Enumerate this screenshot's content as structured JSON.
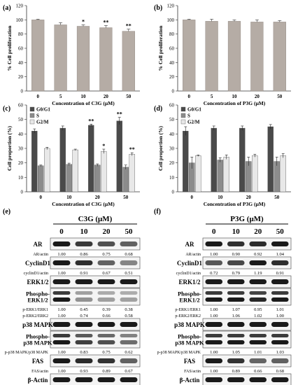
{
  "panels": {
    "a": {
      "label": "(a)"
    },
    "b": {
      "label": "(b)"
    },
    "c": {
      "label": "(c)"
    },
    "d": {
      "label": "(d)"
    },
    "e": {
      "label": "(e)"
    },
    "f": {
      "label": "(f)"
    }
  },
  "colors": {
    "bar_single": "#b5aca5",
    "g0g1": "#4a4a4a",
    "s": "#8c8c8c",
    "g2m": "#e8e8e8",
    "band": "#1a1a1a",
    "blot_bg": "#f4f4f4"
  },
  "chart_data": [
    {
      "id": "a",
      "type": "bar",
      "categories": [
        "0",
        "5",
        "10",
        "20",
        "50"
      ],
      "values": [
        100,
        93,
        91,
        89,
        84
      ],
      "errors": [
        1,
        3,
        2,
        3,
        3
      ],
      "significance": [
        "",
        "",
        "*",
        "**",
        "**"
      ],
      "xlabel": "Concentration of C3G (μM)",
      "ylabel": "% Cell proliferation",
      "ylim": [
        0,
        120
      ],
      "yticks": [
        0,
        20,
        40,
        60,
        80,
        100,
        120
      ],
      "grid": false
    },
    {
      "id": "b",
      "type": "bar",
      "categories": [
        "0",
        "5",
        "10",
        "20",
        "50"
      ],
      "values": [
        100,
        98,
        98,
        97,
        97
      ],
      "errors": [
        1,
        3,
        2,
        3,
        2
      ],
      "significance": [
        "",
        "",
        "",
        "",
        ""
      ],
      "xlabel": "Concentration of P3G (μM)",
      "ylabel": "% Cell proliferation",
      "ylim": [
        0,
        120
      ],
      "yticks": [
        0,
        20,
        40,
        60,
        80,
        100,
        120
      ],
      "grid": false
    },
    {
      "id": "c",
      "type": "bar",
      "categories": [
        "0",
        "10",
        "20",
        "50"
      ],
      "series": [
        {
          "name": "G0/G1",
          "values": [
            42,
            44,
            46,
            49
          ],
          "errors": [
            1.5,
            1.5,
            0.8,
            2.5
          ],
          "significance": [
            "",
            "",
            "**",
            "**"
          ]
        },
        {
          "name": "S",
          "values": [
            18,
            19,
            18.5,
            17
          ],
          "errors": [
            0.5,
            0.8,
            0.8,
            1.5
          ],
          "significance": [
            "",
            "",
            "",
            ""
          ]
        },
        {
          "name": "G2/M",
          "values": [
            30,
            29,
            28,
            26
          ],
          "errors": [
            0.8,
            0.5,
            1.5,
            1.0
          ],
          "significance": [
            "",
            "",
            "*",
            "**"
          ]
        }
      ],
      "xlabel": "Concentration of C3G (μM)",
      "ylabel": "Cell proportion (%)",
      "ylim": [
        0,
        60
      ],
      "yticks": [
        0,
        10,
        20,
        30,
        40,
        50,
        60
      ],
      "legend": "top-left",
      "grid": false
    },
    {
      "id": "d",
      "type": "bar",
      "categories": [
        "0",
        "10",
        "20",
        "50"
      ],
      "series": [
        {
          "name": "G0/G1",
          "values": [
            42,
            44,
            44,
            45
          ],
          "errors": [
            3,
            1.5,
            1.5,
            1.5
          ],
          "significance": [
            "",
            "",
            "",
            ""
          ]
        },
        {
          "name": "S",
          "values": [
            20,
            22,
            21,
            21
          ],
          "errors": [
            4,
            1.5,
            3,
            3
          ],
          "significance": [
            "",
            "",
            "",
            ""
          ]
        },
        {
          "name": "G2/M",
          "values": [
            25,
            24,
            25,
            25
          ],
          "errors": [
            0.5,
            1.5,
            1.0,
            1.5
          ],
          "significance": [
            "",
            "",
            "",
            ""
          ]
        }
      ],
      "xlabel": "Concentration of P3G (μM)",
      "ylabel": "Cell proportion (%)",
      "ylim": [
        0,
        60
      ],
      "yticks": [
        0,
        10,
        20,
        30,
        40,
        50,
        60
      ],
      "legend": "top-left",
      "grid": false
    }
  ],
  "blots": {
    "e": {
      "title": "C3G (μM)",
      "lanes": [
        "0",
        "10",
        "20",
        "50"
      ],
      "rows": [
        {
          "type": "blot",
          "label": "AR",
          "intensity": [
            1.0,
            0.86,
            0.75,
            0.68
          ]
        },
        {
          "type": "values",
          "label": "AR/actin",
          "values": [
            "1.00",
            "0.86",
            "0.75",
            "0.68"
          ]
        },
        {
          "type": "blot",
          "label": "CyclinD1",
          "intensity": [
            1.0,
            0.91,
            0.67,
            0.51
          ]
        },
        {
          "type": "values",
          "label": "cyclinD1/actin",
          "values": [
            "1.00",
            "0.91",
            "0.67",
            "0.51"
          ]
        },
        {
          "type": "blot",
          "label": "ERK1/2",
          "intensity": [
            1.0,
            1.0,
            1.0,
            1.0
          ]
        },
        {
          "type": "blot2",
          "label": "Phospho-\nERK1/2",
          "intensity": [
            1.0,
            0.45,
            0.39,
            0.38
          ]
        },
        {
          "type": "values",
          "label": "p-ERK1/ERK1",
          "values": [
            "1.00",
            "0.45",
            "0.39",
            "0.38"
          ]
        },
        {
          "type": "values",
          "label": "p-ERK2/ERK2",
          "values": [
            "1.00",
            "0.74",
            "0.66",
            "0.58"
          ]
        },
        {
          "type": "blot",
          "label": "p38 MAPK",
          "intensity": [
            1.0,
            1.0,
            1.0,
            1.0
          ]
        },
        {
          "type": "blot2",
          "label": "Phospho-\np38 MAPK",
          "intensity": [
            1.0,
            0.83,
            0.75,
            0.62
          ]
        },
        {
          "type": "values",
          "label": "p-p38 MAPK/p38 MAPK",
          "values": [
            "1.00",
            "0.83",
            "0.75",
            "0.62"
          ]
        },
        {
          "type": "blot",
          "label": "FAS",
          "intensity": [
            1.0,
            0.93,
            0.89,
            0.67
          ]
        },
        {
          "type": "values",
          "label": "FAS/actin",
          "values": [
            "1.00",
            "0.93",
            "0.89",
            "0.67"
          ]
        },
        {
          "type": "blot",
          "label": "β-Actin",
          "intensity": [
            1.0,
            1.0,
            1.0,
            1.0
          ]
        }
      ]
    },
    "f": {
      "title": "P3G (μM)",
      "lanes": [
        "0",
        "10",
        "20",
        "50"
      ],
      "rows": [
        {
          "type": "blot",
          "label": "AR",
          "intensity": [
            1.0,
            0.9,
            0.92,
            1.0
          ]
        },
        {
          "type": "values",
          "label": "AR/actin",
          "values": [
            "1.00",
            "0.90",
            "0.92",
            "1.04"
          ]
        },
        {
          "type": "blot",
          "label": "CyclinD1",
          "intensity": [
            0.72,
            0.79,
            1.0,
            0.91
          ]
        },
        {
          "type": "values",
          "label": "cyclinD1/actin",
          "values": [
            "0.72",
            "0.79",
            "1.19",
            "0.91"
          ]
        },
        {
          "type": "blot",
          "label": "ERK1/2",
          "intensity": [
            1.0,
            1.0,
            1.0,
            1.0
          ]
        },
        {
          "type": "blot2",
          "label": "Phospho-\nERK1/2",
          "intensity": [
            1.0,
            1.0,
            0.95,
            1.0
          ]
        },
        {
          "type": "values",
          "label": "p-ERK1/ERK1",
          "values": [
            "1.00",
            "1.07",
            "0.95",
            "1.01"
          ]
        },
        {
          "type": "values",
          "label": "p-ERK2/ERK2",
          "values": [
            "1.00",
            "1.06",
            "1.02",
            "1.00"
          ]
        },
        {
          "type": "blot",
          "label": "p38 MAPK",
          "intensity": [
            1.0,
            1.0,
            1.0,
            1.0
          ]
        },
        {
          "type": "blot2",
          "label": "Phospho-\np38 MAPK",
          "intensity": [
            1.0,
            1.0,
            1.0,
            1.0
          ]
        },
        {
          "type": "values",
          "label": "p-p38 MAPK/p38 MAPK",
          "values": [
            "1.00",
            "1.05",
            "1.01",
            "1.03"
          ]
        },
        {
          "type": "blot",
          "label": "FAS",
          "intensity": [
            1.0,
            0.89,
            0.66,
            0.68
          ]
        },
        {
          "type": "values",
          "label": "FAS/actin",
          "values": [
            "1.00",
            "0.89",
            "0.66",
            "0.68"
          ]
        },
        {
          "type": "blot",
          "label": "β-Actin",
          "intensity": [
            1.0,
            1.0,
            1.0,
            1.0
          ]
        }
      ]
    }
  }
}
